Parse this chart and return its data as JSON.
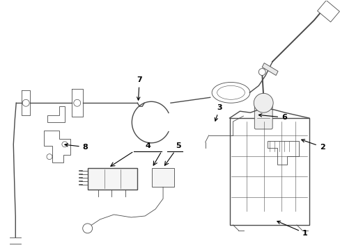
{
  "background_color": "#ffffff",
  "line_color": "#4a4a4a",
  "label_color": "#000000",
  "fig_width": 4.89,
  "fig_height": 3.6,
  "dpi": 100
}
